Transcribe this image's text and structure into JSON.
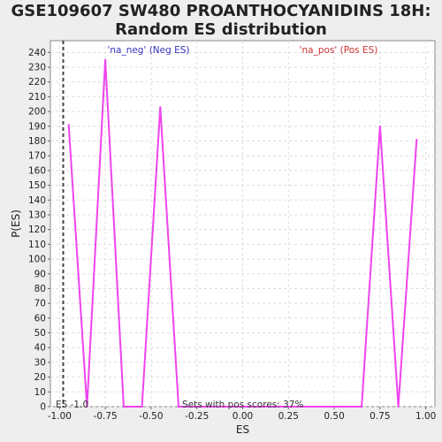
{
  "chart_data": {
    "type": "line",
    "title_line1": "GSE109607 SW480 PROANTHOCYANIDINS 18H:",
    "title_line2": "Random ES distribution",
    "xlabel": "ES",
    "ylabel": "P(ES)",
    "xlim": [
      -1.05,
      1.05
    ],
    "ylim": [
      0,
      248
    ],
    "x_ticks": [
      -1.0,
      -0.75,
      -0.5,
      -0.25,
      0.0,
      0.25,
      0.5,
      0.75,
      1.0
    ],
    "x_tick_labels": [
      "-1.00",
      "-0.75",
      "-0.50",
      "-0.25",
      "0.00",
      "0.25",
      "0.50",
      "0.75",
      "1.00"
    ],
    "y_ticks": [
      0,
      10,
      20,
      30,
      40,
      50,
      60,
      70,
      80,
      90,
      100,
      110,
      120,
      130,
      140,
      150,
      160,
      170,
      180,
      190,
      200,
      210,
      220,
      230,
      240
    ],
    "grid": true,
    "neg_label": "'na_neg' (Neg ES)",
    "pos_label": "'na_pos' (Pos ES)",
    "es_marker_label": "ES -1.0",
    "pos_scores_label": "Sets with pos scores: 37%",
    "es_marker_x": -0.98,
    "series": [
      {
        "x": [
          -0.95,
          -0.85,
          -0.75,
          -0.65,
          -0.55,
          -0.45,
          -0.35,
          -0.25,
          -0.15,
          -0.05,
          0.05,
          0.15,
          0.25,
          0.35,
          0.45,
          0.55,
          0.65,
          0.75,
          0.85,
          0.95
        ],
        "y": [
          191,
          0,
          235,
          0,
          0,
          203,
          0,
          0,
          0,
          0,
          0,
          0,
          0,
          0,
          0,
          0,
          0,
          190,
          0,
          181
        ]
      }
    ],
    "colors": {
      "line": "#ee44ee",
      "neg_label": "#3333bb",
      "pos_label": "#cc3333",
      "plot_bg": "#ffffff",
      "grid": "#dddddd"
    }
  }
}
